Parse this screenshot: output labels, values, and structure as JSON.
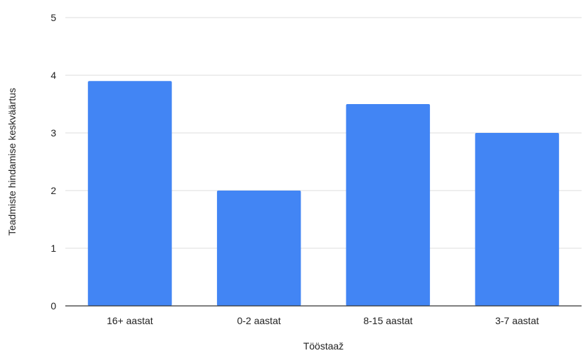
{
  "chart_data": {
    "type": "bar",
    "title": "",
    "xlabel": "Tööstaaž",
    "ylabel": "Teadmiste hindamise keskväärtus",
    "categories": [
      "16+ aastat",
      "0-2 aastat",
      "8-15 aastat",
      "3-7 aastat"
    ],
    "values": [
      3.9,
      2.0,
      3.5,
      3.0
    ],
    "ylim": [
      0,
      5
    ],
    "yticks": [
      "0",
      "1",
      "2",
      "3",
      "4",
      "5"
    ],
    "grid": true,
    "legend": "none",
    "bar_color": "#4285F4"
  }
}
